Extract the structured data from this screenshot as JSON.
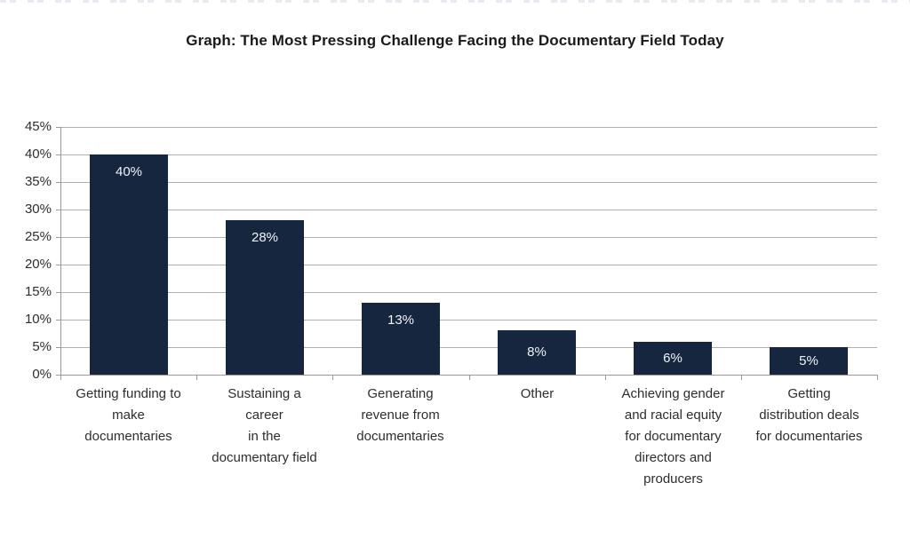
{
  "chart_data": {
    "type": "bar",
    "title": "Graph: The Most Pressing Challenge Facing the Documentary Field Today",
    "categories": [
      "Getting funding to\nmake\ndocumentaries",
      "Sustaining a\ncareer\nin the\ndocumentary field",
      "Generating\nrevenue from\ndocumentaries",
      "Other",
      "Achieving gender\nand racial equity\nfor documentary\ndirectors and\nproducers",
      "Getting\ndistribution deals\nfor documentaries"
    ],
    "values": [
      40,
      28,
      13,
      8,
      6,
      5
    ],
    "bar_labels": [
      "40%",
      "28%",
      "13%",
      "8%",
      "6%",
      "5%"
    ],
    "xlabel": "",
    "ylabel": "",
    "ylim": [
      0,
      45
    ],
    "ytick_step": 5,
    "ytick_labels": [
      "0%",
      "5%",
      "10%",
      "15%",
      "20%",
      "25%",
      "30%",
      "35%",
      "40%",
      "45%"
    ],
    "grid": true,
    "legend": false,
    "colors": {
      "bar": "#17263f",
      "bar_label": "#eef3f9",
      "gridline": "#b0b0b0",
      "axis": "#999999",
      "text": "#2e2e2e",
      "title": "#1a1a1a",
      "background": "#ffffff"
    }
  }
}
